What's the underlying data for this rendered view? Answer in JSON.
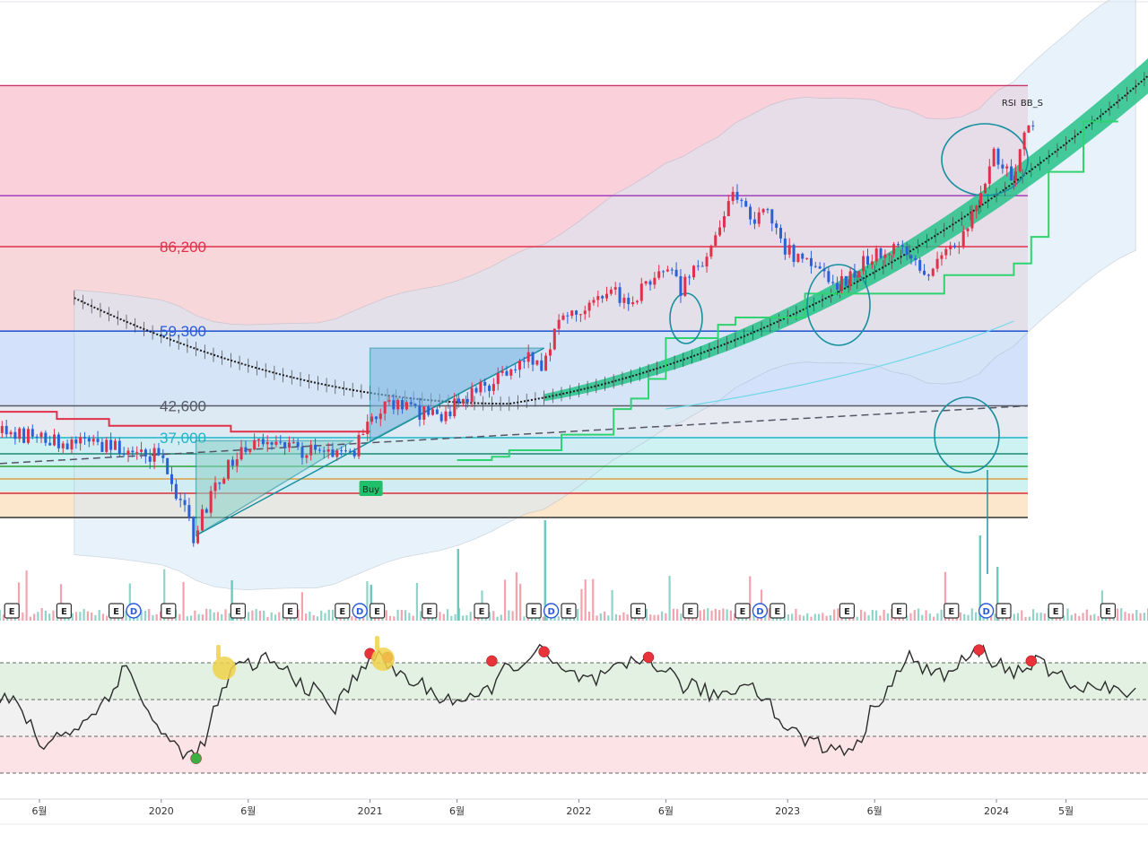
{
  "chart_data": {
    "type": "candlestick",
    "time_axis": {
      "ticks": [
        {
          "label": "6월",
          "date": "2019-06"
        },
        {
          "label": "2020",
          "date": "2020-01"
        },
        {
          "label": "6월",
          "date": "2020-06"
        },
        {
          "label": "2021",
          "date": "2021-01"
        },
        {
          "label": "6월",
          "date": "2021-06"
        },
        {
          "label": "2022",
          "date": "2022-01"
        },
        {
          "label": "6월",
          "date": "2022-06"
        },
        {
          "label": "2023",
          "date": "2023-01"
        },
        {
          "label": "6월",
          "date": "2023-06"
        },
        {
          "label": "2024",
          "date": "2024-01"
        },
        {
          "label": "5월",
          "date": "2024-05"
        }
      ]
    },
    "price_levels": [
      {
        "value": 86200,
        "label": "86,200",
        "color": "#e0304a"
      },
      {
        "value": 59300,
        "label": "59,300",
        "color": "#2a5bd7"
      },
      {
        "value": 42600,
        "label": "42,600",
        "color": "#555b66"
      },
      {
        "value": 37000,
        "label": "37,000",
        "color": "#1fb6c8"
      }
    ],
    "price_path": [
      [
        "2019-04",
        38000
      ],
      [
        "2019-07",
        36500
      ],
      [
        "2019-10",
        35500
      ],
      [
        "2020-01",
        34200
      ],
      [
        "2020-03",
        24000
      ],
      [
        "2020-05",
        33000
      ],
      [
        "2020-07",
        36500
      ],
      [
        "2020-10",
        34500
      ],
      [
        "2020-12",
        34000
      ],
      [
        "2021-02",
        43000
      ],
      [
        "2021-05",
        40500
      ],
      [
        "2021-08",
        47000
      ],
      [
        "2021-10",
        53000
      ],
      [
        "2021-11",
        51000
      ],
      [
        "2021-12",
        62000
      ],
      [
        "2022-03",
        72000
      ],
      [
        "2022-04",
        66000
      ],
      [
        "2022-06",
        80000
      ],
      [
        "2022-07",
        71000
      ],
      [
        "2022-09",
        88000
      ],
      [
        "2022-10",
        108000
      ],
      [
        "2022-11",
        97000
      ],
      [
        "2022-12",
        102000
      ],
      [
        "2023-01",
        85000
      ],
      [
        "2023-04",
        72000
      ],
      [
        "2023-06",
        83000
      ],
      [
        "2023-08",
        86000
      ],
      [
        "2023-09",
        76000
      ],
      [
        "2023-11",
        88000
      ],
      [
        "2023-12",
        102000
      ],
      [
        "2024-01",
        132000
      ],
      [
        "2024-02",
        115000
      ],
      [
        "2024-03",
        150000
      ]
    ],
    "signals": [
      {
        "label": "Buy",
        "date": "2021-01",
        "color": "#20c06a"
      },
      {
        "label": "RSI",
        "date": "2024-01",
        "color": "#222222"
      },
      {
        "label": "BB_S",
        "date": "2024-02",
        "color": "#222222"
      }
    ],
    "events": [
      {
        "label": "E",
        "date": "2019-04"
      },
      {
        "label": "E",
        "date": "2019-07"
      },
      {
        "label": "E",
        "date": "2019-10"
      },
      {
        "label": "D",
        "date": "2019-11"
      },
      {
        "label": "E",
        "date": "2020-01"
      },
      {
        "label": "E",
        "date": "2020-05"
      },
      {
        "label": "E",
        "date": "2020-08"
      },
      {
        "label": "E",
        "date": "2020-11"
      },
      {
        "label": "D",
        "date": "2020-12"
      },
      {
        "label": "E",
        "date": "2021-01"
      },
      {
        "label": "E",
        "date": "2021-04"
      },
      {
        "label": "E",
        "date": "2021-07"
      },
      {
        "label": "E",
        "date": "2021-10"
      },
      {
        "label": "D",
        "date": "2021-11"
      },
      {
        "label": "E",
        "date": "2021-12"
      },
      {
        "label": "E",
        "date": "2022-04"
      },
      {
        "label": "E",
        "date": "2022-07"
      },
      {
        "label": "E",
        "date": "2022-10"
      },
      {
        "label": "D",
        "date": "2022-11"
      },
      {
        "label": "E",
        "date": "2022-12"
      },
      {
        "label": "E",
        "date": "2023-04"
      },
      {
        "label": "E",
        "date": "2023-07"
      },
      {
        "label": "E",
        "date": "2023-10"
      },
      {
        "label": "D",
        "date": "2023-12"
      },
      {
        "label": "E",
        "date": "2024-01"
      },
      {
        "label": "E",
        "date": "2024-04"
      },
      {
        "label": "E",
        "date": "2024-07"
      }
    ],
    "rsi": {
      "zones": [
        70,
        50,
        30
      ],
      "markers": [
        {
          "date": "2020-03",
          "value": 18,
          "color": "#3cb043"
        },
        {
          "date": "2021-01",
          "value": 75,
          "color": "#e8333a"
        },
        {
          "date": "2021-02",
          "value": 73,
          "color": "#e8333a"
        },
        {
          "date": "2021-08",
          "value": 71,
          "color": "#e8333a"
        },
        {
          "date": "2021-11",
          "value": 76,
          "color": "#e8333a"
        },
        {
          "date": "2022-05",
          "value": 73,
          "color": "#e8333a"
        },
        {
          "date": "2023-12",
          "value": 77,
          "color": "#e8333a"
        },
        {
          "date": "2024-03",
          "value": 71,
          "color": "#e8333a"
        }
      ]
    },
    "colors": {
      "up": "#e0304a",
      "down": "#2a62d6",
      "moving_average": "#1d1d1d",
      "ma_band": "#27c28a",
      "trailing_stop": "#2fd36f",
      "bollinger_fill": "#d6e9f6",
      "annotation": "#178f9e"
    }
  }
}
